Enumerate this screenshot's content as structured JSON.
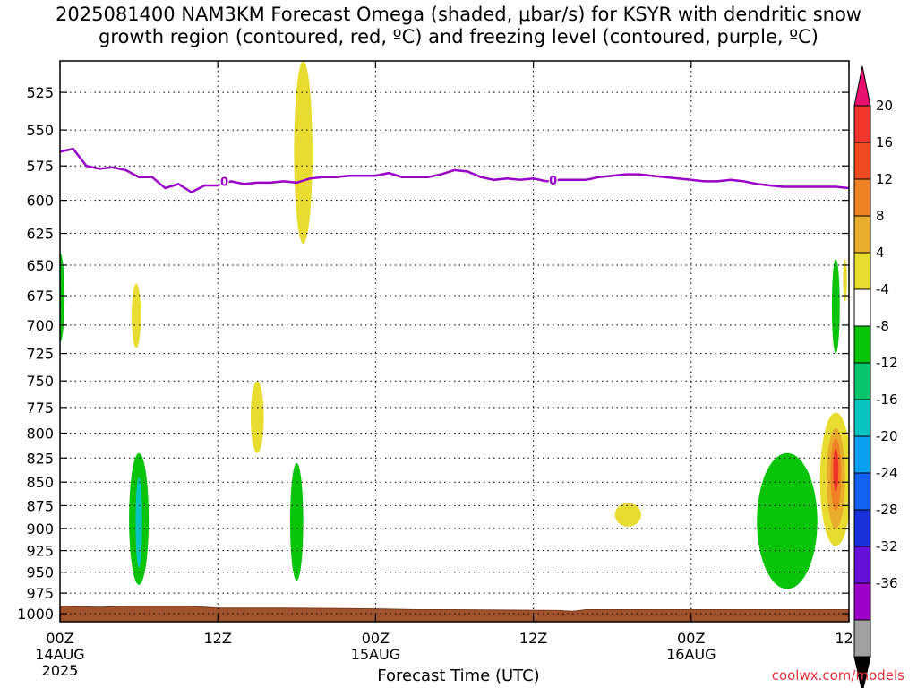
{
  "header": {
    "title_line1": "2025081400 NAM3KM Forecast Omega (shaded, μbar/s) for KSYR with dendritic snow",
    "title_line2": "growth region (contoured, red, ºC) and freezing level (contoured, purple, ºC)"
  },
  "footer": {
    "brand": "coolwx.com/models"
  },
  "chart_data": {
    "type": "heatmap",
    "title": "2025081400 NAM3KM Forecast Omega (shaded, μbar/s) for KSYR with dendritic snow growth region (contoured, red, ºC) and freezing level (contoured, purple, ºC)",
    "xlabel": "Forecast Time (UTC)",
    "ylabel": "",
    "x_ticks": [
      {
        "hour": 0,
        "label": "00Z",
        "sub": "14AUG",
        "sub2": "2025"
      },
      {
        "hour": 12,
        "label": "12Z",
        "sub": "",
        "sub2": ""
      },
      {
        "hour": 24,
        "label": "00Z",
        "sub": "15AUG",
        "sub2": ""
      },
      {
        "hour": 36,
        "label": "12Z",
        "sub": "",
        "sub2": ""
      },
      {
        "hour": 48,
        "label": "00Z",
        "sub": "16AUG",
        "sub2": ""
      },
      {
        "hour": 60,
        "label": "12Z",
        "sub": "",
        "sub2": ""
      }
    ],
    "xlim": [
      0,
      60
    ],
    "y_ticks": [
      525,
      550,
      575,
      600,
      625,
      650,
      675,
      700,
      725,
      750,
      775,
      800,
      825,
      850,
      875,
      900,
      925,
      950,
      975,
      1000
    ],
    "y_scale": "log",
    "ylim": [
      1010,
      505
    ],
    "grid": true,
    "colorbar": {
      "labels": [
        "20",
        "16",
        "12",
        "8",
        "4",
        "-4",
        "-8",
        "-12",
        "-16",
        "-20",
        "-24",
        "-28",
        "-32",
        "-36"
      ],
      "colors": [
        "#e8106e",
        "#f0362c",
        "#ef4a22",
        "#f08226",
        "#e8ad2c",
        "#e8dc30",
        "#ffffff",
        "#0ac40a",
        "#08c46c",
        "#08c4c0",
        "#0aa0f0",
        "#1460f0",
        "#1830d8",
        "#6610d8",
        "#9d00c8",
        "#a0a0a0",
        "#000000"
      ]
    },
    "freezing_level_label": "0",
    "freezing_level": [
      [
        0,
        565
      ],
      [
        1,
        563
      ],
      [
        2,
        575
      ],
      [
        3,
        577
      ],
      [
        4,
        576
      ],
      [
        5,
        578
      ],
      [
        6,
        583
      ],
      [
        7,
        583
      ],
      [
        8,
        591
      ],
      [
        9,
        588
      ],
      [
        10,
        594
      ],
      [
        11,
        589
      ],
      [
        12,
        589
      ],
      [
        13,
        586
      ],
      [
        14,
        588
      ],
      [
        15,
        587
      ],
      [
        16,
        587
      ],
      [
        17,
        586
      ],
      [
        18,
        587
      ],
      [
        19,
        584
      ],
      [
        20,
        583
      ],
      [
        21,
        583
      ],
      [
        22,
        582
      ],
      [
        23,
        582
      ],
      [
        24,
        582
      ],
      [
        25,
        580
      ],
      [
        26,
        583
      ],
      [
        27,
        583
      ],
      [
        28,
        583
      ],
      [
        29,
        581
      ],
      [
        30,
        578
      ],
      [
        31,
        579
      ],
      [
        32,
        583
      ],
      [
        33,
        585
      ],
      [
        34,
        584
      ],
      [
        35,
        585
      ],
      [
        36,
        584
      ],
      [
        37,
        586
      ],
      [
        38,
        585
      ],
      [
        39,
        585
      ],
      [
        40,
        585
      ],
      [
        41,
        583
      ],
      [
        42,
        582
      ],
      [
        43,
        581
      ],
      [
        44,
        581
      ],
      [
        45,
        582
      ],
      [
        46,
        583
      ],
      [
        47,
        584
      ],
      [
        48,
        585
      ],
      [
        49,
        586
      ],
      [
        50,
        586
      ],
      [
        51,
        585
      ],
      [
        52,
        586
      ],
      [
        53,
        588
      ],
      [
        54,
        589
      ],
      [
        55,
        590
      ],
      [
        56,
        590
      ],
      [
        57,
        590
      ],
      [
        58,
        590
      ],
      [
        59,
        590
      ],
      [
        60,
        591
      ]
    ],
    "terrain_level": [
      [
        0,
        991
      ],
      [
        3,
        992
      ],
      [
        5,
        991
      ],
      [
        10,
        991
      ],
      [
        12,
        993
      ],
      [
        17,
        993
      ],
      [
        24,
        994
      ],
      [
        27,
        995
      ],
      [
        30,
        995
      ],
      [
        38,
        996
      ],
      [
        39,
        997
      ],
      [
        40,
        995
      ],
      [
        47,
        995
      ],
      [
        60,
        995
      ]
    ],
    "omega_features": [
      {
        "kind": "ellipse",
        "x": 18.5,
        "p": 585,
        "rx": 0.7,
        "rp_top": 505,
        "rp_bot": 633,
        "color": "#e8dc30"
      },
      {
        "kind": "ellipse",
        "x": 15.0,
        "p": 785,
        "rx": 0.5,
        "rp_top": 750,
        "rp_bot": 820,
        "color": "#e8dc30"
      },
      {
        "kind": "ellipse",
        "x": 5.8,
        "p": 695,
        "rx": 0.35,
        "rp_top": 665,
        "rp_bot": 720,
        "color": "#e8dc30"
      },
      {
        "kind": "ellipse",
        "x": 0.0,
        "p": 680,
        "rx": 0.35,
        "rp_top": 640,
        "rp_bot": 715,
        "color": "#0ac40a"
      },
      {
        "kind": "ellipse",
        "x": 6.0,
        "p": 895,
        "rx": 0.75,
        "rp_top": 820,
        "rp_bot": 965,
        "color": "#0ac40a"
      },
      {
        "kind": "ellipse",
        "x": 6.0,
        "p": 895,
        "rx": 0.25,
        "rp_top": 845,
        "rp_bot": 945,
        "color": "#08c4c0"
      },
      {
        "kind": "ellipse",
        "x": 18.0,
        "p": 895,
        "rx": 0.5,
        "rp_top": 830,
        "rp_bot": 960,
        "color": "#0ac40a"
      },
      {
        "kind": "ellipse",
        "x": 43.2,
        "p": 885,
        "rx": 1.0,
        "rp_top": 872,
        "rp_bot": 898,
        "color": "#e8dc30"
      },
      {
        "kind": "ellipse",
        "x": 59.0,
        "p": 690,
        "rx": 0.3,
        "rp_top": 645,
        "rp_bot": 725,
        "color": "#0ac40a"
      },
      {
        "kind": "ellipse",
        "x": 59.7,
        "p": 665,
        "rx": 0.15,
        "rp_top": 645,
        "rp_bot": 680,
        "color": "#e8dc30"
      },
      {
        "kind": "ellipse",
        "x": 55.3,
        "p": 900,
        "rx": 2.3,
        "rp_top": 820,
        "rp_bot": 970,
        "color": "#0ac40a"
      },
      {
        "kind": "ellipse",
        "x": 59.0,
        "p": 840,
        "rx": 1.2,
        "rp_top": 780,
        "rp_bot": 920,
        "color": "#e8dc30"
      },
      {
        "kind": "ellipse",
        "x": 59.0,
        "p": 840,
        "rx": 0.7,
        "rp_top": 795,
        "rp_bot": 900,
        "color": "#e8ad2c"
      },
      {
        "kind": "ellipse",
        "x": 59.0,
        "p": 840,
        "rx": 0.4,
        "rp_top": 805,
        "rp_bot": 880,
        "color": "#f08226"
      },
      {
        "kind": "ellipse",
        "x": 59.0,
        "p": 840,
        "rx": 0.2,
        "rp_top": 815,
        "rp_bot": 860,
        "color": "#f0362c"
      }
    ]
  }
}
